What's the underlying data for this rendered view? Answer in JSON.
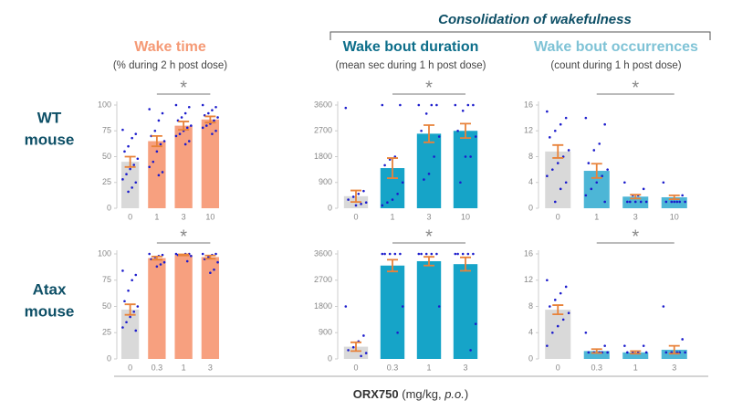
{
  "figure": {
    "header": "Consolidation of wakefulness",
    "row_labels": [
      [
        "WT",
        "mouse"
      ],
      [
        "Atax",
        "mouse"
      ]
    ],
    "x_label": [
      "ORX750",
      " (mg/kg, ",
      "p.o.",
      ")"
    ]
  },
  "chart_data": [
    {
      "type": "bar",
      "title": "Wake time",
      "subtitle": "(% during 2 h post dose)",
      "title_color": "#f59a76",
      "categories": [
        "0",
        "1",
        "3",
        "10"
      ],
      "values": [
        45,
        65,
        80,
        86
      ],
      "errors": [
        5,
        5,
        4,
        3
      ],
      "colors": [
        "#d9d9d9",
        "#f7a07f",
        "#f7a07f",
        "#f7a07f"
      ],
      "points": [
        [
          76,
          72,
          68,
          60,
          55,
          48,
          42,
          38,
          33,
          28,
          25,
          20,
          16
        ],
        [
          96,
          92,
          85,
          75,
          70,
          65,
          62,
          55,
          45,
          40,
          35,
          32
        ],
        [
          100,
          98,
          92,
          88,
          85,
          80,
          78,
          75,
          72,
          70,
          65,
          62
        ],
        [
          100,
          98,
          95,
          92,
          90,
          88,
          85,
          82,
          80,
          78,
          75,
          72
        ]
      ],
      "ylim": [
        0,
        100
      ],
      "yticks": [
        0,
        25,
        50,
        75,
        100
      ],
      "significance": "*"
    },
    {
      "type": "bar",
      "title": "Wake bout duration",
      "subtitle": "(mean sec during 1 h post dose)",
      "title_color": "#0d6e8a",
      "categories": [
        "0",
        "1",
        "3",
        "10"
      ],
      "values": [
        420,
        1400,
        2600,
        2700
      ],
      "errors": [
        200,
        350,
        300,
        250
      ],
      "colors": [
        "#d9d9d9",
        "#16a4c8",
        "#16a4c8",
        "#16a4c8"
      ],
      "points": [
        [
          3500,
          600,
          500,
          400,
          300,
          200,
          150,
          100
        ],
        [
          3600,
          3600,
          1800,
          1700,
          1500,
          900,
          500,
          300,
          200,
          100
        ],
        [
          3600,
          3600,
          3600,
          3300,
          2700,
          2500,
          1800,
          1200,
          1000
        ],
        [
          3600,
          3600,
          3600,
          3400,
          2700,
          2500,
          1800,
          1800,
          900
        ]
      ],
      "ylim": [
        0,
        3600
      ],
      "yticks": [
        0,
        900,
        1800,
        2700,
        3600
      ],
      "significance": "*"
    },
    {
      "type": "bar",
      "title": "Wake bout occurrences",
      "subtitle": "(count during 1 h post dose)",
      "title_color": "#7fc3d6",
      "categories": [
        "0",
        "1",
        "3",
        "10"
      ],
      "values": [
        8.8,
        5.8,
        1.8,
        1.7
      ],
      "errors": [
        1,
        1.1,
        0.3,
        0.3
      ],
      "colors": [
        "#d9d9d9",
        "#4db6d6",
        "#4db6d6",
        "#4db6d6"
      ],
      "points": [
        [
          15,
          14,
          13,
          12,
          11,
          9,
          8,
          7,
          6,
          5,
          4,
          3,
          1
        ],
        [
          14,
          13,
          10,
          9,
          7,
          6,
          5,
          4,
          3,
          2,
          1
        ],
        [
          4,
          3,
          2,
          2,
          1,
          1,
          1,
          1,
          1
        ],
        [
          4,
          2,
          1,
          1,
          1,
          1,
          1,
          1
        ]
      ],
      "ylim": [
        0,
        16
      ],
      "yticks": [
        0,
        4,
        8,
        12,
        16
      ],
      "significance": "*"
    },
    {
      "type": "bar",
      "categories": [
        "0",
        "0.3",
        "1",
        "3"
      ],
      "values": [
        47,
        96,
        99,
        97
      ],
      "errors": [
        5,
        1.5,
        0.5,
        1.5
      ],
      "colors": [
        "#d9d9d9",
        "#f7a07f",
        "#f7a07f",
        "#f7a07f"
      ],
      "points": [
        [
          84,
          80,
          75,
          65,
          55,
          50,
          45,
          40,
          35,
          30,
          27
        ],
        [
          100,
          99,
          98,
          97,
          95,
          92,
          90,
          88
        ],
        [
          100,
          100,
          100,
          99,
          99,
          98,
          93
        ],
        [
          100,
          100,
          99,
          97,
          95,
          92,
          85,
          82
        ]
      ],
      "ylim": [
        0,
        100
      ],
      "yticks": [
        0,
        25,
        50,
        75,
        100
      ],
      "significance": "*"
    },
    {
      "type": "bar",
      "categories": [
        "0",
        "0.3",
        "1",
        "3"
      ],
      "values": [
        420,
        3200,
        3350,
        3250
      ],
      "errors": [
        150,
        200,
        150,
        230
      ],
      "colors": [
        "#d9d9d9",
        "#16a4c8",
        "#16a4c8",
        "#16a4c8"
      ],
      "points": [
        [
          1800,
          800,
          600,
          400,
          300,
          200,
          100
        ],
        [
          3600,
          3600,
          3600,
          3600,
          3600,
          1800,
          900
        ],
        [
          3600,
          3600,
          3600,
          3600,
          3600,
          1800
        ],
        [
          3600,
          3600,
          3600,
          3600,
          3600,
          1200,
          300
        ]
      ],
      "ylim": [
        0,
        3600
      ],
      "yticks": [
        0,
        900,
        1800,
        2700,
        3600
      ],
      "significance": "*"
    },
    {
      "type": "bar",
      "categories": [
        "0",
        "0.3",
        "1",
        "3"
      ],
      "values": [
        7.5,
        1.2,
        1,
        1.4
      ],
      "errors": [
        0.7,
        0.3,
        0.2,
        0.6
      ],
      "colors": [
        "#d9d9d9",
        "#4db6d6",
        "#4db6d6",
        "#4db6d6"
      ],
      "points": [
        [
          12,
          11,
          10,
          9,
          8,
          7,
          6,
          5,
          4,
          2
        ],
        [
          4,
          2,
          1,
          1,
          1,
          1,
          1
        ],
        [
          2,
          2,
          1,
          1,
          1,
          1
        ],
        [
          8,
          3,
          1,
          1,
          1,
          1,
          1
        ]
      ],
      "ylim": [
        0,
        16
      ],
      "yticks": [
        0,
        4,
        8,
        12,
        16
      ],
      "significance": "*"
    }
  ]
}
